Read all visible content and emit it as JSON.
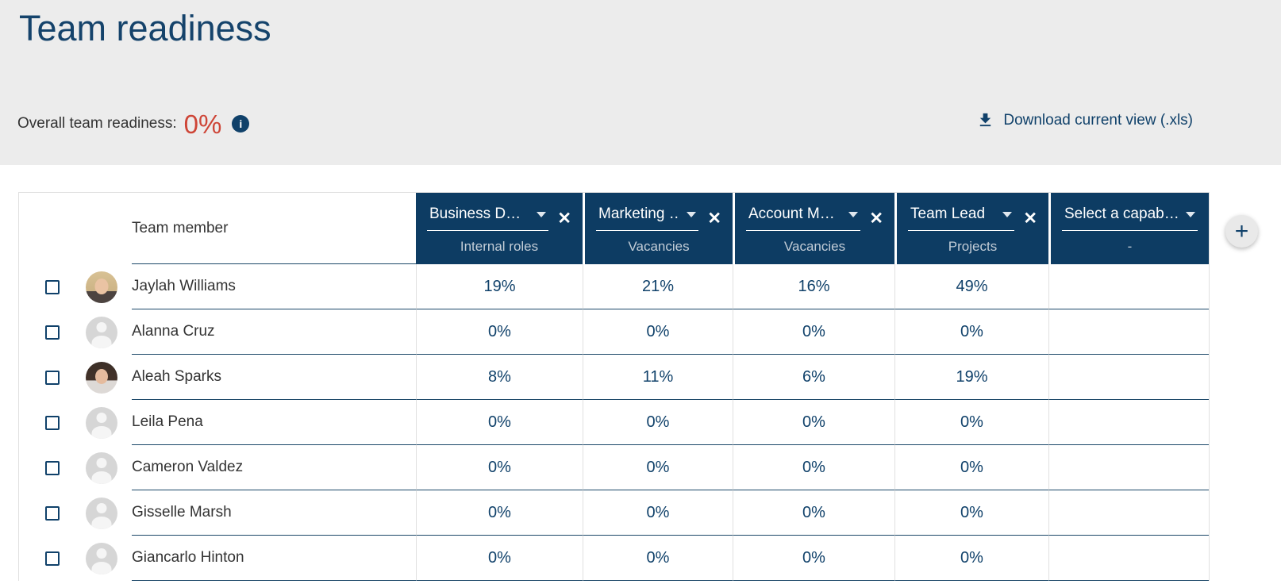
{
  "page": {
    "title": "Team readiness",
    "overall_label": "Overall team readiness:",
    "overall_value": "0%",
    "download_label": "Download current view (.xls)"
  },
  "glyphs": {
    "close": "✕",
    "plus": "+",
    "info": "i"
  },
  "colors": {
    "band_bg": "#ececec",
    "title_navy": "#15436b",
    "header_navy_bg": "#0d3c63",
    "navy_text": "#10416a",
    "red_accent": "#ce4537",
    "dark_text": "#333333",
    "light_border": "#e0e0e0",
    "row_border_navy": "#1b4768",
    "header_subtext": "#c3cdd7",
    "avatar_bg": "#d6d6d6",
    "avatar_silhouette": "#f5f5f5",
    "add_button_bg": "#e9e9e9"
  },
  "table": {
    "member_header": "Team member",
    "columns": [
      {
        "selector": "Business D…",
        "category": "Internal roles",
        "closable": true
      },
      {
        "selector": "Marketing …",
        "category": "Vacancies",
        "closable": true
      },
      {
        "selector": "Account M…",
        "category": "Vacancies",
        "closable": true
      },
      {
        "selector": "Team Lead",
        "category": "Projects",
        "closable": true
      },
      {
        "selector": "Select a capab…",
        "category": "-",
        "closable": false
      }
    ],
    "rows": [
      {
        "name": "Jaylah Williams",
        "avatar": "photo-blonde",
        "values": [
          "19%",
          "21%",
          "16%",
          "49%",
          ""
        ]
      },
      {
        "name": "Alanna Cruz",
        "avatar": "placeholder",
        "values": [
          "0%",
          "0%",
          "0%",
          "0%",
          ""
        ]
      },
      {
        "name": "Aleah Sparks",
        "avatar": "photo-brunette",
        "values": [
          "8%",
          "11%",
          "6%",
          "19%",
          ""
        ]
      },
      {
        "name": "Leila Pena",
        "avatar": "placeholder",
        "values": [
          "0%",
          "0%",
          "0%",
          "0%",
          ""
        ]
      },
      {
        "name": "Cameron Valdez",
        "avatar": "placeholder",
        "values": [
          "0%",
          "0%",
          "0%",
          "0%",
          ""
        ]
      },
      {
        "name": "Gisselle Marsh",
        "avatar": "placeholder",
        "values": [
          "0%",
          "0%",
          "0%",
          "0%",
          ""
        ]
      },
      {
        "name": "Giancarlo Hinton",
        "avatar": "placeholder",
        "values": [
          "0%",
          "0%",
          "0%",
          "0%",
          ""
        ]
      }
    ]
  }
}
